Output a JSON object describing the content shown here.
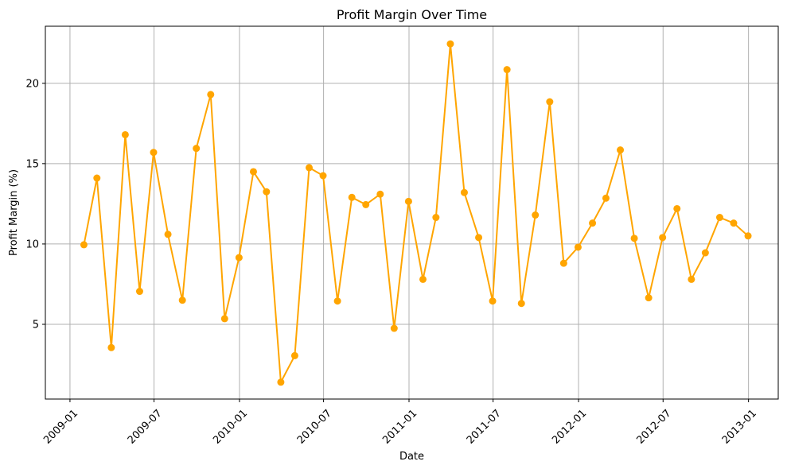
{
  "chart_data": {
    "type": "line",
    "title": "Profit Margin Over Time",
    "xlabel": "Date",
    "ylabel": "Profit Margin (%)",
    "grid": true,
    "line_color": "#ffa500",
    "grid_color": "#b0b0b0",
    "marker": "circle",
    "xlim": [
      "2008-11-09",
      "2013-03-06"
    ],
    "ylim": [
      0.35,
      23.55
    ],
    "x_ticks": [
      "2009-01",
      "2009-07",
      "2010-01",
      "2010-07",
      "2011-01",
      "2011-07",
      "2012-01",
      "2012-07",
      "2013-01"
    ],
    "y_ticks": [
      5,
      10,
      15,
      20
    ],
    "series": [
      {
        "x": [
          "2009-01-31",
          "2009-02-28",
          "2009-03-31",
          "2009-04-30",
          "2009-05-31",
          "2009-06-30",
          "2009-07-31",
          "2009-08-31",
          "2009-09-30",
          "2009-10-31",
          "2009-11-30",
          "2009-12-31",
          "2010-01-31",
          "2010-02-28",
          "2010-03-31",
          "2010-04-30",
          "2010-05-31",
          "2010-06-30",
          "2010-07-31",
          "2010-08-31",
          "2010-09-30",
          "2010-10-31",
          "2010-11-30",
          "2010-12-31",
          "2011-01-31",
          "2011-02-28",
          "2011-03-31",
          "2011-04-30",
          "2011-05-31",
          "2011-06-30",
          "2011-07-31",
          "2011-08-31",
          "2011-09-30",
          "2011-10-31",
          "2011-11-30",
          "2011-12-31",
          "2012-01-31",
          "2012-02-29",
          "2012-03-31",
          "2012-04-30",
          "2012-05-31",
          "2012-06-30",
          "2012-07-31",
          "2012-08-31",
          "2012-09-30",
          "2012-10-31",
          "2012-11-30",
          "2012-12-31"
        ],
        "y": [
          9.95,
          14.1,
          3.55,
          16.8,
          7.05,
          15.7,
          10.6,
          6.5,
          15.95,
          19.3,
          5.35,
          9.15,
          14.5,
          13.25,
          1.4,
          3.05,
          14.75,
          14.25,
          6.45,
          12.9,
          12.45,
          13.1,
          4.75,
          12.65,
          7.8,
          11.65,
          22.45,
          13.2,
          10.4,
          6.45,
          20.85,
          6.3,
          11.8,
          18.85,
          8.8,
          9.8,
          11.3,
          12.85,
          15.85,
          10.35,
          6.65,
          10.4,
          12.2,
          7.8,
          9.45,
          11.65,
          11.3,
          10.5
        ]
      }
    ]
  }
}
